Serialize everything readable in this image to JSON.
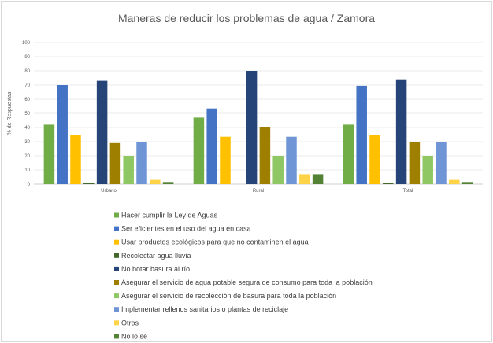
{
  "chart_data": {
    "type": "bar",
    "title": "Maneras de reducir los problemas de agua / Zamora",
    "xlabel": "",
    "ylabel": "% de Respuestas",
    "ylim": [
      0,
      100
    ],
    "yticks": [
      0,
      10,
      20,
      30,
      40,
      50,
      60,
      70,
      80,
      90,
      100
    ],
    "grid": true,
    "legend_position": "bottom",
    "categories": [
      "Urbano",
      "Rural",
      "Total"
    ],
    "series": [
      {
        "name": "Hacer cumplir la Ley de Aguas",
        "color": "#70ad47",
        "values": [
          42,
          47,
          42
        ]
      },
      {
        "name": "Ser eficientes en el uso del agua en casa",
        "color": "#4472c4",
        "values": [
          70,
          53.5,
          69.5
        ]
      },
      {
        "name": "Usar productos ecológicos para que no contaminen el agua",
        "color": "#ffc000",
        "values": [
          34.5,
          33.5,
          34.5
        ]
      },
      {
        "name": "Recolectar agua lluvia",
        "color": "#43682b",
        "values": [
          1,
          0,
          1
        ]
      },
      {
        "name": "No botar basura al río",
        "color": "#264478",
        "values": [
          73,
          80,
          73.5
        ]
      },
      {
        "name": "Asegurar el servicio de agua potable segura de consumo para toda la población",
        "color": "#9e7f00",
        "values": [
          29,
          40,
          29.5
        ]
      },
      {
        "name": "Asegurar el servicio de recolección de basura para toda la población",
        "color": "#8fc764",
        "values": [
          20,
          20,
          20
        ]
      },
      {
        "name": "Implementar rellenos sanitarios o plantas de reciclaje",
        "color": "#6f95d6",
        "values": [
          30,
          33.5,
          30
        ]
      },
      {
        "name": "Otros",
        "color": "#ffd347",
        "values": [
          3,
          7,
          3
        ]
      },
      {
        "name": "No lo sé",
        "color": "#548235",
        "values": [
          1.5,
          7,
          1.5
        ]
      }
    ]
  }
}
